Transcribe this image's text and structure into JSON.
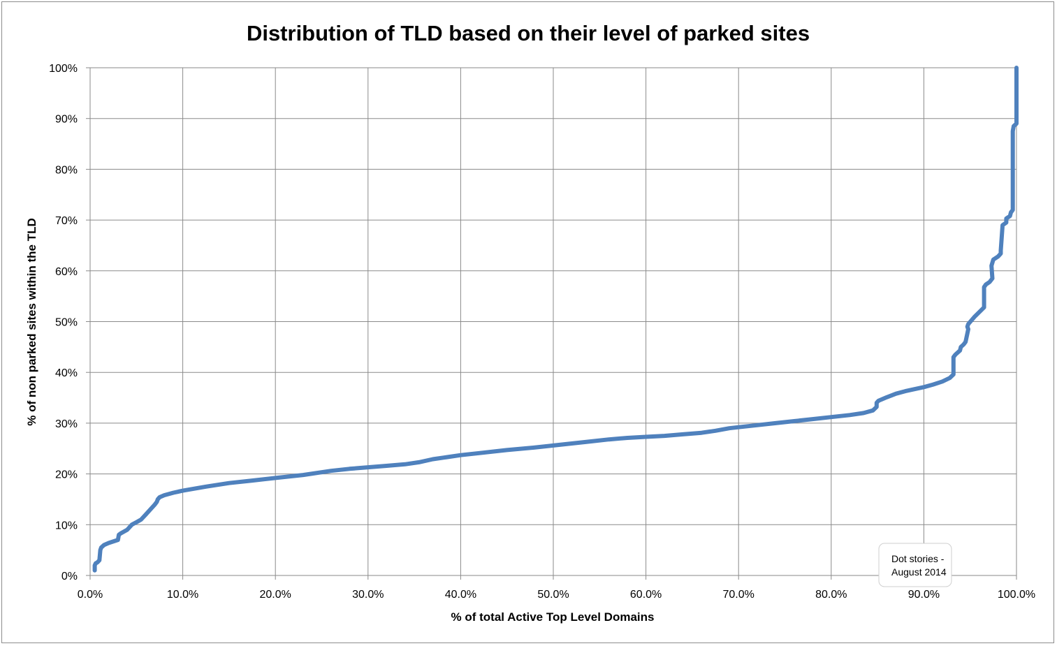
{
  "chart_data": {
    "type": "line",
    "title": "Distribution of TLD based on their level of parked sites",
    "xlabel": "% of total Active Top Level Domains",
    "ylabel": "% of non parked sites within the TLD",
    "xlim": [
      0,
      100
    ],
    "ylim": [
      0,
      100
    ],
    "x_ticks": [
      "0.0%",
      "10.0%",
      "20.0%",
      "30.0%",
      "40.0%",
      "50.0%",
      "60.0%",
      "70.0%",
      "80.0%",
      "90.0%",
      "100.0%"
    ],
    "y_ticks": [
      "0%",
      "10%",
      "20%",
      "30%",
      "40%",
      "50%",
      "60%",
      "70%",
      "80%",
      "90%",
      "100%"
    ],
    "grid": true,
    "legend": "none",
    "line_color": "#4f81bd",
    "annotation": [
      "Dot stories -",
      "August 2014"
    ],
    "series": [
      {
        "x": [
          0.5,
          0.5,
          0.6,
          0.8,
          1.0,
          1.1,
          1.2,
          1.5,
          2.0,
          3.0,
          3.1,
          3.3,
          4.0,
          4.5,
          5.0,
          5.5,
          6.0,
          6.5,
          7.0,
          7.2,
          7.3,
          7.5,
          8.0,
          9.0,
          10.0,
          12.5,
          15.0,
          17.5,
          20.0,
          23.0,
          26.0,
          28.0,
          30.0,
          32.0,
          34.0,
          35.5,
          37.0,
          38.5,
          40.0,
          42.0,
          45.0,
          48.0,
          50.0,
          52.0,
          54.0,
          56.0,
          58.0,
          60.0,
          62.0,
          64.0,
          66.0,
          67.5,
          69.0,
          70.0,
          72.0,
          74.0,
          76.0,
          78.0,
          80.0,
          82.0,
          83.5,
          84.5,
          84.9,
          84.9,
          85.1,
          86.0,
          87.0,
          88.0,
          89.0,
          90.0,
          91.0,
          92.0,
          92.8,
          93.2,
          93.2,
          93.4,
          93.9,
          94.0,
          94.3,
          94.5,
          94.8,
          94.7,
          94.8,
          95.5,
          96.5,
          96.5,
          96.5,
          96.7,
          97.1,
          97.4,
          97.3,
          97.5,
          98.0,
          98.3,
          98.3,
          98.5,
          98.9,
          98.9,
          99.3,
          99.4,
          99.6,
          99.6,
          99.6,
          99.7,
          100.0,
          100.0,
          100.0
        ],
        "y": [
          1.0,
          2.0,
          2.4,
          2.6,
          3.0,
          5.0,
          5.5,
          6.0,
          6.4,
          7.0,
          8.0,
          8.3,
          9.0,
          10.0,
          10.5,
          11.0,
          12.0,
          13.0,
          14.0,
          14.5,
          15.0,
          15.4,
          15.8,
          16.3,
          16.7,
          17.5,
          18.2,
          18.7,
          19.2,
          19.8,
          20.6,
          21.0,
          21.3,
          21.6,
          21.9,
          22.3,
          22.9,
          23.3,
          23.7,
          24.1,
          24.7,
          25.2,
          25.6,
          26.0,
          26.4,
          26.8,
          27.1,
          27.3,
          27.5,
          27.8,
          28.1,
          28.5,
          29.0,
          29.2,
          29.6,
          30.0,
          30.4,
          30.8,
          31.2,
          31.6,
          32.0,
          32.5,
          33.2,
          34.0,
          34.4,
          35.1,
          35.8,
          36.3,
          36.7,
          37.1,
          37.6,
          38.2,
          38.9,
          39.6,
          43.0,
          43.5,
          44.3,
          45.0,
          45.5,
          46.0,
          48.5,
          49.0,
          49.5,
          51.0,
          52.8,
          53.2,
          56.8,
          57.3,
          57.8,
          58.5,
          61.0,
          62.2,
          62.8,
          63.4,
          64.0,
          69.0,
          69.5,
          70.3,
          70.8,
          71.5,
          72.0,
          73.0,
          87.5,
          88.5,
          89.0,
          95.0,
          100.0
        ]
      }
    ]
  }
}
